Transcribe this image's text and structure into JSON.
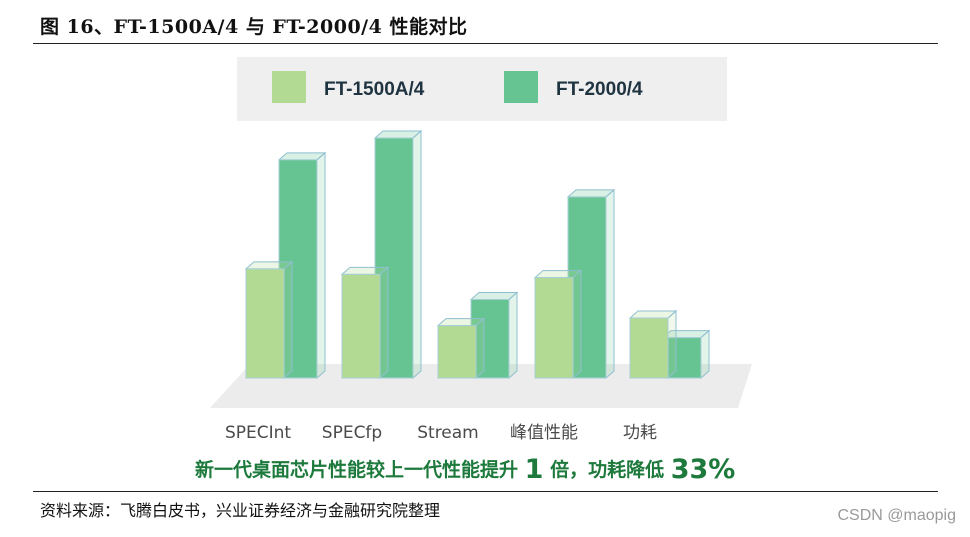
{
  "figure": {
    "title": "图 16、FT-1500A/4 与 FT-2000/4 性能对比",
    "source": "资料来源：飞腾白皮书，兴业证券经济与金融研究院整理",
    "watermark": "CSDN @maopig"
  },
  "caption": {
    "part1": "新一代桌面芯片性能较上一代性能提升",
    "num1": "1",
    "part2": "倍，功耗降低",
    "num2": "33%"
  },
  "chart_data": {
    "type": "bar",
    "style": "3d-grouped",
    "title": "",
    "xlabel": "",
    "ylabel": "",
    "categories": [
      "SPECInt",
      "SPECfp",
      "Stream",
      "峰值性能",
      "功耗"
    ],
    "series": [
      {
        "name": "FT-1500A/4",
        "color": "#b3da93",
        "values": [
          1.0,
          0.95,
          0.48,
          0.92,
          0.55
        ]
      },
      {
        "name": "FT-2000/4",
        "color": "#66c392",
        "values": [
          2.0,
          2.2,
          0.72,
          1.66,
          0.37
        ]
      }
    ],
    "ylim": [
      0,
      2.4
    ],
    "grid": false,
    "axes_visible": false,
    "legend": "top-center"
  }
}
